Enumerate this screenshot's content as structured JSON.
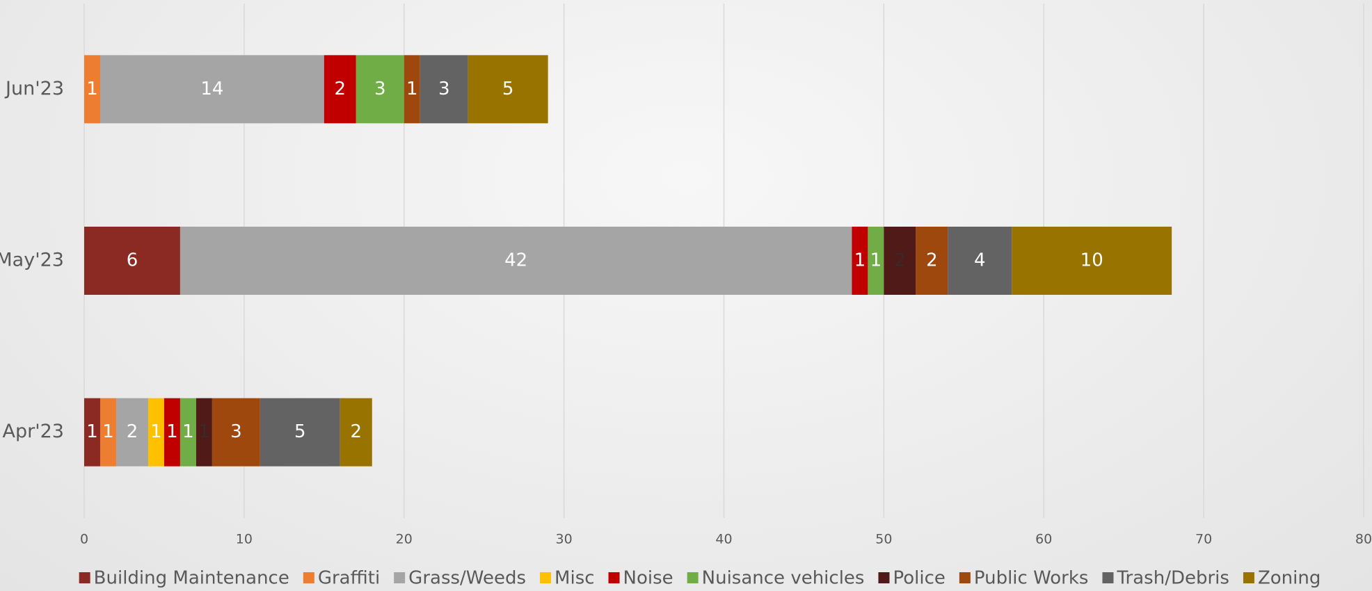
{
  "chart_data": {
    "type": "stacked_barh",
    "categories": [
      "Apr'23",
      "May'23",
      "Jun'23"
    ],
    "series": [
      {
        "name": "Building Maintenance",
        "color": "#8b2a22",
        "values": [
          1,
          6,
          null
        ]
      },
      {
        "name": "Graffiti",
        "color": "#ed7d31",
        "values": [
          1,
          null,
          1
        ]
      },
      {
        "name": "Grass/Weeds",
        "color": "#a5a5a5",
        "values": [
          2,
          42,
          14
        ]
      },
      {
        "name": "Misc",
        "color": "#ffc000",
        "values": [
          1,
          null,
          null
        ]
      },
      {
        "name": "Noise",
        "color": "#c00000",
        "values": [
          1,
          1,
          2
        ]
      },
      {
        "name": "Nuisance vehicles",
        "color": "#70ad47",
        "values": [
          1,
          1,
          3
        ]
      },
      {
        "name": "Police",
        "color": "#4f1a17",
        "values": [
          1,
          2,
          null
        ]
      },
      {
        "name": "Public Works",
        "color": "#9e480e",
        "values": [
          3,
          2,
          1
        ]
      },
      {
        "name": "Trash/Debris",
        "color": "#636363",
        "values": [
          5,
          4,
          3
        ]
      },
      {
        "name": "Zoning",
        "color": "#997300",
        "values": [
          2,
          10,
          5
        ]
      }
    ],
    "xlim": [
      0,
      80
    ],
    "xticks": [
      0,
      10,
      20,
      30,
      40,
      50,
      60,
      70,
      80
    ],
    "grid": true,
    "legend": "bottom"
  }
}
